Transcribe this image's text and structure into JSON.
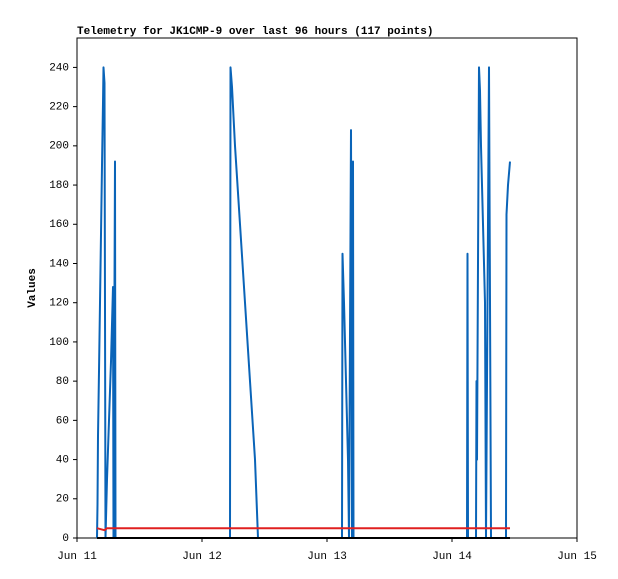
{
  "chart_data": {
    "type": "line",
    "title": "Telemetry for JK1CMP-9 over last 96 hours (117 points)",
    "ylabel": "Values",
    "xlim": [
      11,
      15
    ],
    "xticks": [
      {
        "value": 11,
        "label": "Jun 11"
      },
      {
        "value": 12,
        "label": "Jun 12"
      },
      {
        "value": 13,
        "label": "Jun 13"
      },
      {
        "value": 14,
        "label": "Jun 14"
      },
      {
        "value": 15,
        "label": "Jun 15"
      }
    ],
    "ylim": [
      0,
      255
    ],
    "yticks": [
      0,
      20,
      40,
      60,
      80,
      100,
      120,
      140,
      160,
      180,
      200,
      220,
      240
    ],
    "grid": false,
    "series": [
      {
        "color": "#0a64b8",
        "x": [
          11.16,
          11.164,
          11.168,
          11.176,
          11.184,
          11.192,
          11.2,
          11.208,
          11.212,
          11.22,
          11.228,
          11.24,
          11.256,
          11.272,
          11.288,
          11.292,
          11.304,
          11.308,
          12.224,
          12.228,
          12.24,
          12.264,
          12.304,
          12.344,
          12.384,
          12.424,
          12.448,
          13.12,
          13.124,
          13.136,
          13.152,
          13.168,
          13.176,
          13.192,
          13.2,
          13.208,
          13.212,
          14.12,
          14.124,
          14.128,
          14.192,
          14.196,
          14.2,
          14.216,
          14.224,
          14.232,
          14.248,
          14.264,
          14.272,
          14.296,
          14.304,
          14.312,
          14.432,
          14.436,
          14.448,
          14.464
        ],
        "values": [
          0,
          17,
          52,
          85,
          120,
          155,
          190,
          222,
          240,
          232,
          0,
          30,
          60,
          90,
          128,
          0,
          192,
          0,
          0,
          240,
          230,
          200,
          160,
          120,
          80,
          40,
          0,
          0,
          145,
          120,
          80,
          40,
          0,
          208,
          0,
          192,
          0,
          0,
          145,
          0,
          0,
          80,
          40,
          240,
          228,
          200,
          160,
          120,
          0,
          240,
          120,
          0,
          0,
          165,
          180,
          192
        ]
      },
      {
        "color": "#e02020",
        "x": [
          11.16,
          11.22,
          11.24,
          14.464
        ],
        "values": [
          5,
          4,
          5,
          5
        ]
      },
      {
        "color": "#000000",
        "x": [
          11.16,
          14.464
        ],
        "values": [
          0,
          0
        ]
      }
    ]
  }
}
